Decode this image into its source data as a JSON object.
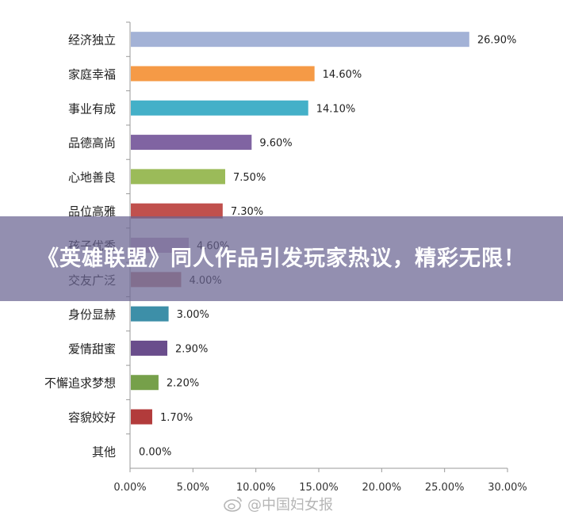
{
  "banner": {
    "title": "《英雄联盟》同人作品引发玩家热议，精彩无限！"
  },
  "watermark": {
    "text": "@中国妇女报",
    "icon": "weibo-icon"
  },
  "chart_data": {
    "type": "bar",
    "orientation": "horizontal",
    "categories": [
      "经济独立",
      "家庭幸福",
      "事业有成",
      "品德高尚",
      "心地善良",
      "品位高雅",
      "孩子优秀",
      "交友广泛",
      "身份显赫",
      "爱情甜蜜",
      "不懈追求梦想",
      "容貌姣好",
      "其他"
    ],
    "values": [
      26.9,
      14.6,
      14.1,
      9.6,
      7.5,
      7.3,
      4.6,
      4.0,
      3.0,
      2.9,
      2.2,
      1.7,
      0.0
    ],
    "value_labels": [
      "26.90%",
      "14.60%",
      "14.10%",
      "9.60%",
      "7.50%",
      "7.30%",
      "4.60%",
      "4.00%",
      "3.00%",
      "2.90%",
      "2.20%",
      "1.70%",
      "0.00%"
    ],
    "colors": [
      "#a3b2d6",
      "#f59a46",
      "#44b0c8",
      "#8064a2",
      "#9bbb59",
      "#c0504d",
      "#c9aec8",
      "#c08c8a",
      "#3d8fa8",
      "#6a4d8c",
      "#76a04a",
      "#b23b3b",
      "#4472c4"
    ],
    "xlim": [
      0,
      30
    ],
    "x_ticks": [
      "0.00%",
      "5.00%",
      "10.00%",
      "15.00%",
      "20.00%",
      "25.00%",
      "30.00%"
    ],
    "grid": false
  }
}
